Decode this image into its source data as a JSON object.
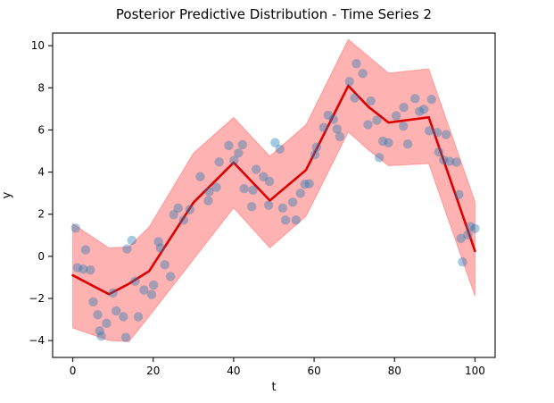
{
  "chart_data": {
    "type": "line",
    "title": "Posterior Predictive Distribution - Time Series 2",
    "xlabel": "t",
    "ylabel": "y",
    "xlim": [
      -5,
      105
    ],
    "ylim": [
      -4.8,
      10.6
    ],
    "grid": false,
    "legend": null,
    "x_ticks": [
      {
        "v": 0,
        "label": "0"
      },
      {
        "v": 20,
        "label": "20"
      },
      {
        "v": 40,
        "label": "40"
      },
      {
        "v": 60,
        "label": "60"
      },
      {
        "v": 80,
        "label": "80"
      },
      {
        "v": 100,
        "label": "100"
      }
    ],
    "y_ticks": [
      {
        "v": -4,
        "label": "−4"
      },
      {
        "v": -2,
        "label": "−2"
      },
      {
        "v": 0,
        "label": "0"
      },
      {
        "v": 2,
        "label": "2"
      },
      {
        "v": 4,
        "label": "4"
      },
      {
        "v": 6,
        "label": "6"
      },
      {
        "v": 8,
        "label": "8"
      },
      {
        "v": 10,
        "label": "10"
      }
    ],
    "series": [
      {
        "name": "credible-band",
        "kind": "band",
        "color": "#ff0000",
        "opacity": 0.3,
        "t": [
          0,
          9,
          14,
          19,
          30,
          40,
          49,
          58,
          68.5,
          73.5,
          78.5,
          88.5,
          100
        ],
        "upper": [
          1.55,
          0.4,
          0.45,
          1.4,
          4.9,
          6.6,
          4.75,
          6.25,
          10.3,
          9.5,
          8.7,
          8.9,
          2.6
        ],
        "lower": [
          -3.4,
          -4.0,
          -4.05,
          -2.85,
          -0.15,
          2.3,
          0.4,
          1.9,
          5.9,
          5.05,
          4.3,
          4.4,
          -1.9
        ]
      },
      {
        "name": "posterior-mean",
        "kind": "line",
        "color": "#dd0000",
        "width": 2.6,
        "t": [
          0,
          9,
          14,
          19,
          30,
          40,
          49,
          58,
          68.5,
          73.5,
          78.5,
          88.5,
          100
        ],
        "y": [
          -0.9,
          -1.8,
          -1.3,
          -0.7,
          2.55,
          4.45,
          2.65,
          4.1,
          8.1,
          7.1,
          6.35,
          6.6,
          0.25
        ]
      },
      {
        "name": "observations",
        "kind": "scatter",
        "color": "#1f77b4",
        "opacity": 0.4,
        "radius": 5.2,
        "points": [
          [
            0.7,
            1.34
          ],
          [
            1.2,
            -0.54
          ],
          [
            2.6,
            -0.61
          ],
          [
            3.2,
            0.31
          ],
          [
            4.4,
            -0.65
          ],
          [
            5.1,
            -2.16
          ],
          [
            6.2,
            -2.77
          ],
          [
            6.7,
            -3.54
          ],
          [
            7.1,
            -3.79
          ],
          [
            8.4,
            -3.18
          ],
          [
            10,
            -1.74
          ],
          [
            10.8,
            -2.59
          ],
          [
            12.6,
            -2.87
          ],
          [
            13.2,
            -3.85
          ],
          [
            13.5,
            0.35
          ],
          [
            14.7,
            0.76
          ],
          [
            15.5,
            -1.18
          ],
          [
            16.3,
            -2.87
          ],
          [
            17.7,
            -1.6
          ],
          [
            19.6,
            -1.81
          ],
          [
            20.1,
            -1.36
          ],
          [
            21.3,
            0.69
          ],
          [
            21.8,
            0.4
          ],
          [
            22.9,
            -0.4
          ],
          [
            24.3,
            -0.96
          ],
          [
            25.1,
            1.98
          ],
          [
            26.2,
            2.29
          ],
          [
            27.6,
            1.72
          ],
          [
            29.1,
            2.22
          ],
          [
            31.7,
            3.78
          ],
          [
            33.7,
            2.64
          ],
          [
            33.9,
            3.07
          ],
          [
            35.7,
            3.28
          ],
          [
            36.4,
            4.48
          ],
          [
            38.8,
            5.26
          ],
          [
            40.1,
            4.55
          ],
          [
            41.2,
            4.9
          ],
          [
            42.2,
            5.3
          ],
          [
            42.6,
            3.21
          ],
          [
            44.5,
            2.36
          ],
          [
            44.8,
            3.14
          ],
          [
            45.6,
            4.13
          ],
          [
            47.4,
            3.78
          ],
          [
            48.7,
            2.43
          ],
          [
            48.9,
            3.56
          ],
          [
            50.3,
            5.4
          ],
          [
            51.5,
            5.1
          ],
          [
            52.2,
            2.29
          ],
          [
            52.9,
            1.72
          ],
          [
            54.7,
            2.57
          ],
          [
            55.5,
            1.72
          ],
          [
            56.6,
            2.99
          ],
          [
            57.7,
            3.42
          ],
          [
            58.8,
            3.45
          ],
          [
            60.2,
            4.83
          ],
          [
            60.6,
            5.18
          ],
          [
            62.4,
            6.11
          ],
          [
            63.5,
            6.7
          ],
          [
            64.8,
            6.5
          ],
          [
            65.7,
            6.04
          ],
          [
            66.4,
            5.68
          ],
          [
            68.8,
            8.3
          ],
          [
            70.1,
            7.52
          ],
          [
            70.5,
            9.15
          ],
          [
            72.1,
            8.68
          ],
          [
            73.4,
            6.25
          ],
          [
            74.1,
            7.38
          ],
          [
            75.6,
            6.46
          ],
          [
            76.2,
            4.69
          ],
          [
            77.1,
            5.47
          ],
          [
            78.5,
            5.39
          ],
          [
            80.4,
            6.67
          ],
          [
            82.2,
            6.18
          ],
          [
            82.3,
            7.07
          ],
          [
            83.3,
            5.33
          ],
          [
            85.1,
            7.49
          ],
          [
            86.2,
            6.88
          ],
          [
            87.3,
            6.98
          ],
          [
            88.6,
            5.96
          ],
          [
            89.2,
            7.45
          ],
          [
            90.6,
            5.88
          ],
          [
            91,
            4.96
          ],
          [
            92.2,
            4.57
          ],
          [
            92.8,
            5.78
          ],
          [
            93.7,
            4.51
          ],
          [
            95.4,
            4.47
          ],
          [
            96,
            2.93
          ],
          [
            96.5,
            0.85
          ],
          [
            96.9,
            -0.27
          ],
          [
            98.2,
            1.02
          ],
          [
            98.9,
            1.41
          ],
          [
            100,
            1.32
          ]
        ]
      }
    ],
    "axis_color": "#1a1a1a"
  }
}
